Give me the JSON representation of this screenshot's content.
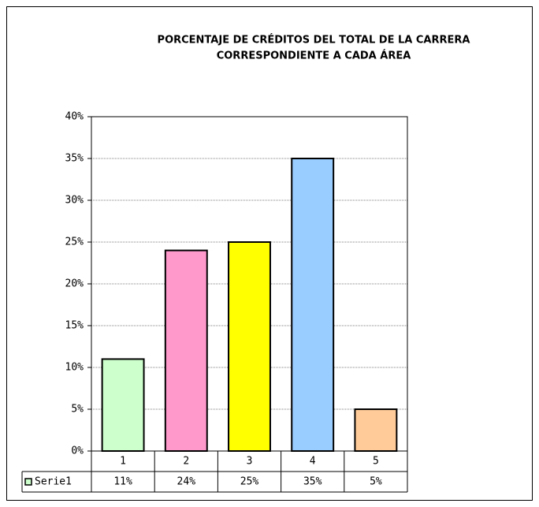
{
  "chart_data": {
    "type": "bar",
    "title": [
      "PORCENTAJE DE CRÉDITOS DEL TOTAL DE LA CARRERA",
      "CORRESPONDIENTE A CADA ÁREA"
    ],
    "categories": [
      "1",
      "2",
      "3",
      "4",
      "5"
    ],
    "series": [
      {
        "name": "Serie1",
        "colors": [
          "#ccffcc",
          "#ff99cc",
          "#ffff00",
          "#99ccff",
          "#ffcc99"
        ],
        "values": [
          11,
          24,
          25,
          35,
          5
        ],
        "value_labels": [
          "11%",
          "24%",
          "25%",
          "35%",
          "5%"
        ]
      }
    ],
    "ylim": [
      0,
      40
    ],
    "yticks": [
      {
        "value": 0,
        "label": "0%"
      },
      {
        "value": 5,
        "label": "5%"
      },
      {
        "value": 10,
        "label": "10%"
      },
      {
        "value": 15,
        "label": "15%"
      },
      {
        "value": 20,
        "label": "20%"
      },
      {
        "value": 25,
        "label": "25%"
      },
      {
        "value": 30,
        "label": "30%"
      },
      {
        "value": 35,
        "label": "35%"
      },
      {
        "value": 40,
        "label": "40%"
      }
    ],
    "grid": true
  }
}
